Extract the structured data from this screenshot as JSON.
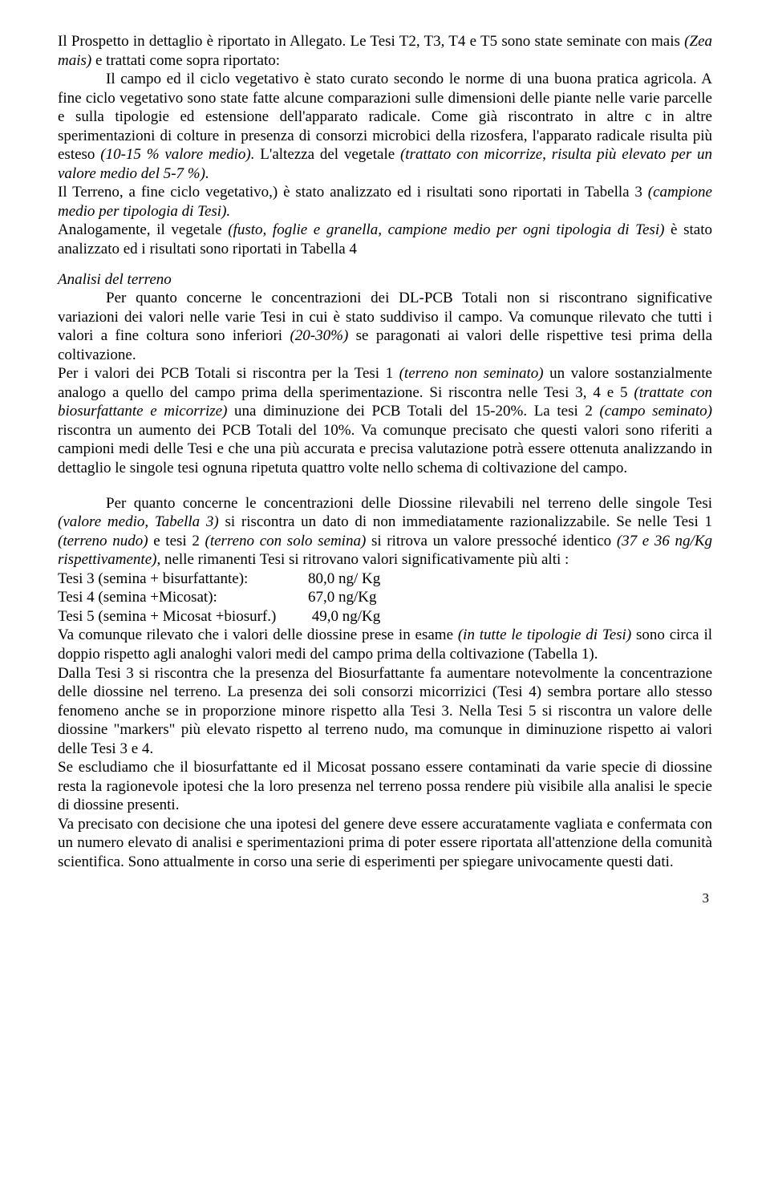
{
  "p1": "Il Prospetto in dettaglio è riportato in Allegato. Le Tesi T2, T3, T4 e T5 sono state seminate con mais ",
  "p1i": "(Zea mais)",
  "p1b": " e trattati come sopra riportato:",
  "p2a": "Il campo ed il ciclo vegetativo è stato curato secondo le norme di una buona pratica agricola. A fine ciclo vegetativo sono state fatte alcune comparazioni sulle dimensioni delle piante nelle varie parcelle e sulla tipologie ed estensione dell'apparato radicale. Come già riscontrato in altre c in altre sperimentazioni di colture in presenza di consorzi microbici della rizosfera, l'apparato radicale risulta più esteso ",
  "p2i1": "(10-15 % valore medio). ",
  "p2b": "L'altezza del vegetale ",
  "p2i2": "(trattato con micorrize, risulta più elevato per un valore medio del 5-7 %).",
  "p3a": "Il Terreno, a fine ciclo vegetativo,) è stato analizzato ed i risultati sono riportati in Tabella 3 ",
  "p3i": "(campione medio per tipologia di Tesi).",
  "p4a": "Analogamente, il vegetale ",
  "p4i": "(fusto, foglie e granella, campione medio per ogni tipologia di Tesi)",
  "p4b": " è stato analizzato ed i risultati sono riportati in Tabella 4",
  "h1": "Analisi del terreno",
  "p5": "Per quanto concerne le concentrazioni dei DL-PCB Totali non si riscontrano significative variazioni dei valori nelle varie Tesi in cui è stato suddiviso il campo. Va comunque  rilevato che tutti i valori a fine coltura sono inferiori ",
  "p5i": "(20-30%)",
  "p5b": " se paragonati ai valori delle rispettive tesi prima della coltivazione.",
  "p6a": "Per i valori dei PCB Totali si riscontra per la Tesi 1 ",
  "p6i1": "(terreno non seminato)",
  "p6b": " un valore sostanzialmente analogo a quello del campo prima della sperimentazione. Si riscontra nelle Tesi 3, 4 e 5 ",
  "p6i2": "(trattate con biosurfattante e micorrize)",
  "p6c": " una diminuzione dei PCB Totali del 15-20%. La tesi 2 ",
  "p6i3": "(campo seminato)",
  "p6d": "  riscontra un aumento dei PCB Totali del 10%. Va comunque precisato che questi valori sono riferiti a campioni medi delle Tesi e che una più accurata e precisa valutazione potrà essere ottenuta analizzando in dettaglio le singole tesi ognuna ripetuta quattro volte nello schema di coltivazione del campo.",
  "p7a": "Per quanto concerne le concentrazioni delle Diossine rilevabili nel terreno delle singole Tesi ",
  "p7i1": "(valore medio, Tabella 3)",
  "p7b": " si riscontra un dato di non immediatamente razionalizzabile. Se nelle Tesi 1 ",
  "p7i2": "(terreno nudo)",
  "p7c": " e tesi 2 ",
  "p7i3": "(terreno con solo semina)",
  "p7d": " si ritrova un valore pressoché identico ",
  "p7i4": "(37 e 36 ng/Kg rispettivamente)",
  "p7e": ", nelle rimanenti Tesi si ritrovano valori significativamente più alti :",
  "l1a": "Tesi 3 (semina + bisurfattante):",
  "l1b": "80,0 ng/ Kg",
  "l2a": "Tesi 4 (semina +Micosat):",
  "l2b": "67,0 ng/Kg",
  "l3a": "Tesi 5 (semina + Micosat +biosurf.)",
  "l3b": " 49,0 ng/Kg",
  "p8a": "Va comunque rilevato che i valori delle diossine prese in esame ",
  "p8i": "(in tutte le tipologie di Tesi)",
  "p8b": " sono circa il doppio rispetto agli analoghi valori medi del campo prima della coltivazione (Tabella 1).",
  "p9": "Dalla Tesi 3 si riscontra che la presenza del Biosurfattante fa aumentare notevolmente la concentrazione delle diossine nel terreno. La presenza dei soli consorzi  micorrizici (Tesi 4) sembra portare allo stesso fenomeno anche se in proporzione minore rispetto alla Tesi 3. Nella Tesi 5  si riscontra un valore delle diossine \"markers\" più elevato rispetto al terreno nudo, ma comunque in diminuzione rispetto ai valori delle Tesi 3 e 4.",
  "p10": "Se escludiamo che il biosurfattante ed il Micosat possano essere contaminati da varie specie di diossine resta la ragionevole ipotesi che la loro presenza nel terreno possa rendere più visibile alla analisi le specie di diossine presenti.",
  "p11": "Va precisato con decisione che una ipotesi del genere deve essere accuratamente vagliata e confermata con un numero elevato di analisi e sperimentazioni prima di poter essere riportata all'attenzione della comunità scientifica. Sono attualmente in corso una serie di esperimenti per spiegare univocamente questi dati.",
  "pagenum": "3"
}
